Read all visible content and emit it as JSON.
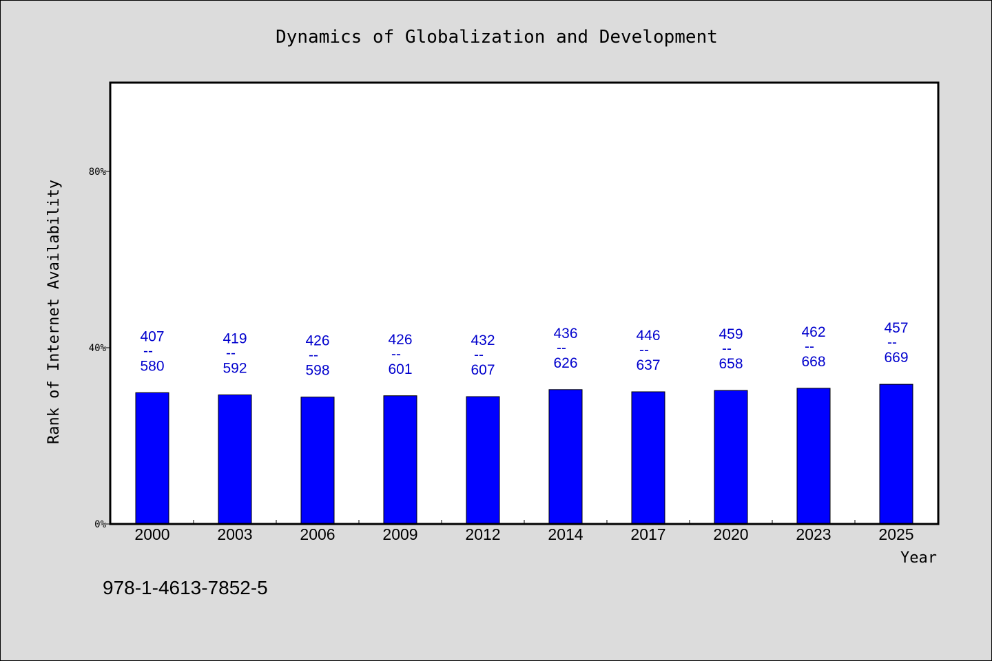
{
  "footer_text": "978-1-4613-7852-5",
  "colors": {
    "background": "#dcdcdc",
    "plot_background": "#ffffff",
    "bar": "#0000ff",
    "label": "#0000cd"
  },
  "chart_data": {
    "type": "bar",
    "title": "Dynamics of Globalization and Development",
    "xlabel": "Year",
    "ylabel": "Rank of Internet Availability",
    "ylim": [
      0,
      100
    ],
    "yticks": [
      0,
      40,
      80
    ],
    "ytick_labels": [
      "0%",
      "40%",
      "80%"
    ],
    "grid": false,
    "categories": [
      "2000",
      "2003",
      "2006",
      "2009",
      "2012",
      "2014",
      "2017",
      "2020",
      "2023",
      "2025"
    ],
    "values": [
      29.8,
      29.3,
      28.8,
      29.1,
      28.9,
      30.5,
      30.0,
      30.3,
      30.8,
      31.7
    ],
    "annotations": [
      {
        "top": "407",
        "sep": "--",
        "bottom": "580"
      },
      {
        "top": "419",
        "sep": "--",
        "bottom": "592"
      },
      {
        "top": "426",
        "sep": "--",
        "bottom": "598"
      },
      {
        "top": "426",
        "sep": "--",
        "bottom": "601"
      },
      {
        "top": "432",
        "sep": "--",
        "bottom": "607"
      },
      {
        "top": "436",
        "sep": "--",
        "bottom": "626"
      },
      {
        "top": "446",
        "sep": "--",
        "bottom": "637"
      },
      {
        "top": "459",
        "sep": "--",
        "bottom": "658"
      },
      {
        "top": "462",
        "sep": "--",
        "bottom": "668"
      },
      {
        "top": "457",
        "sep": "--",
        "bottom": "669"
      }
    ]
  }
}
